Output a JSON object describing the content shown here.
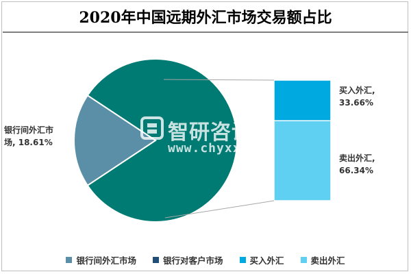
{
  "title": "2020年中国远期外汇市场交易额占比",
  "watermark": {
    "brand": "智研咨询",
    "url": "www.chyxx.com"
  },
  "colors": {
    "interbank": "#5b8fa8",
    "client": "#1f4e79",
    "buy": "#00a9e0",
    "sell": "#5fd0f2",
    "pie_main": "#007b73",
    "connector": "#a6a6a6"
  },
  "chart_data": {
    "type": "pie",
    "variant": "bar-of-pie",
    "title": "2020年中国远期外汇市场交易额占比",
    "pie": [
      {
        "name": "银行间外汇市场",
        "value": 18.61,
        "label": "银行间外汇市场, 18.61%"
      },
      {
        "name": "银行对客户市场",
        "value": 81.39,
        "label": ""
      }
    ],
    "breakdown_of": "银行对客户市场",
    "bar": [
      {
        "name": "买入外汇",
        "value": 33.66,
        "label_name": "买入外汇,",
        "label_value": "33.66%"
      },
      {
        "name": "卖出外汇",
        "value": 66.34,
        "label_name": "卖出外汇,",
        "label_value": "66.34%"
      }
    ],
    "legend": [
      "银行间外汇市场",
      "银行对客户市场",
      "买入外汇",
      "卖出外汇"
    ],
    "legend_position": "bottom"
  },
  "labels": {
    "interbank_line1": "银行间外汇市",
    "interbank_line2": "场, 18.61%"
  }
}
